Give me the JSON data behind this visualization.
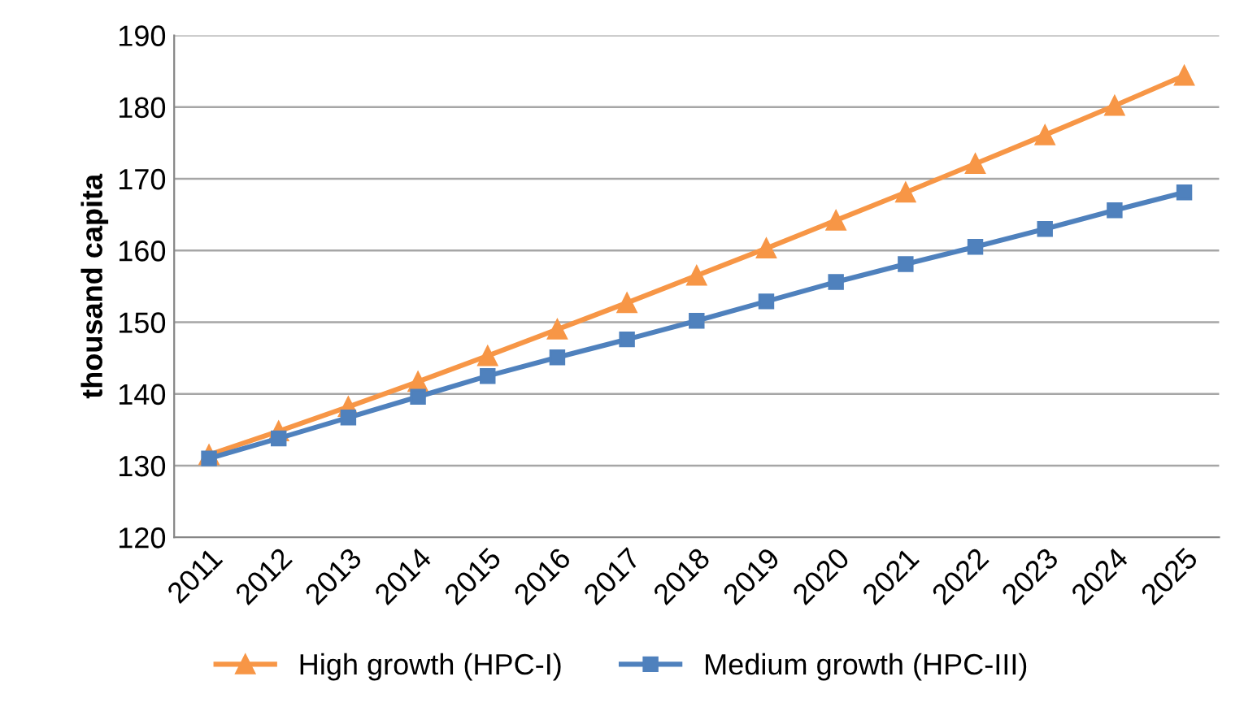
{
  "chart_data": {
    "type": "line",
    "ylabel": "thousand capita",
    "categories": [
      "2011",
      "2012",
      "2013",
      "2014",
      "2015",
      "2016",
      "2017",
      "2018",
      "2019",
      "2020",
      "2021",
      "2022",
      "2023",
      "2024",
      "2025"
    ],
    "series": [
      {
        "name": "High growth (HPC-I)",
        "color": "#f79646",
        "marker": "triangle",
        "values": [
          131.5,
          134.8,
          138.2,
          141.7,
          145.3,
          149.0,
          152.7,
          156.5,
          160.3,
          164.2,
          168.1,
          172.1,
          176.1,
          180.2,
          184.4
        ]
      },
      {
        "name": "Medium growth (HPC-III)",
        "color": "#4f81bd",
        "marker": "square",
        "values": [
          131.0,
          133.8,
          136.7,
          139.6,
          142.5,
          145.1,
          147.6,
          150.2,
          152.9,
          155.6,
          158.1,
          160.5,
          163.0,
          165.6,
          168.1
        ]
      }
    ],
    "ylim": [
      120,
      190
    ],
    "yticks": [
      120,
      130,
      140,
      150,
      160,
      170,
      180,
      190
    ],
    "grid": "y",
    "legend": "bottom",
    "line_style": "solid"
  }
}
